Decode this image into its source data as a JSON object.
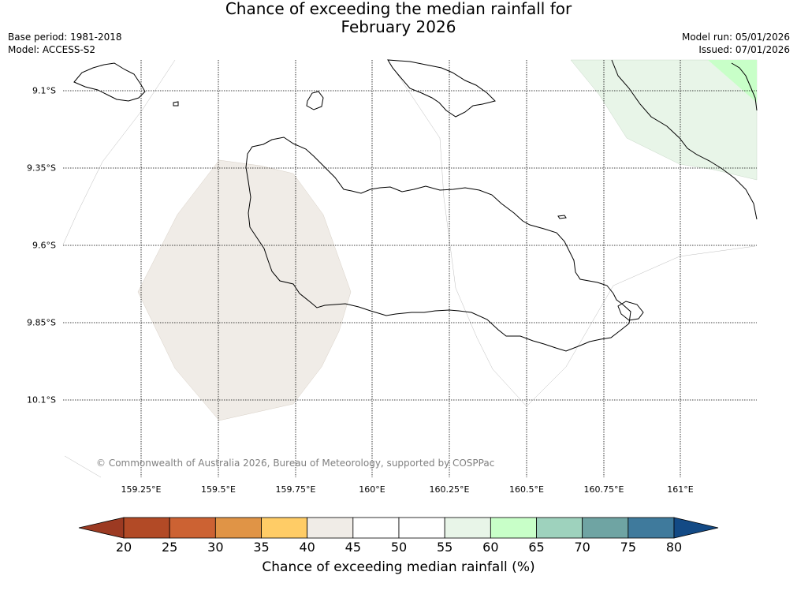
{
  "header": {
    "title_line1": "Chance of exceeding the median rainfall for",
    "title_line2": "February 2026",
    "base_period": "Base period: 1981-2018",
    "model": "Model: ACCESS-S2",
    "model_run": "Model run: 05/01/2026",
    "issued": "Issued: 07/01/2026"
  },
  "map": {
    "lat_labels": [
      "9.1°S",
      "9.35°S",
      "9.6°S",
      "9.85°S",
      "10.1°S"
    ],
    "lon_labels": [
      "159.25°E",
      "159.5°E",
      "159.75°E",
      "160°E",
      "160.25°E",
      "160.5°E",
      "160.75°E",
      "161°E"
    ],
    "copyright": "© Commonwealth of Australia 2026, Bureau of Meteorology, supported by COSPPac",
    "regions": [
      {
        "name": "40-45 region",
        "color": "#f0ece7"
      },
      {
        "name": "55-60 region",
        "color": "#e8f5e8"
      },
      {
        "name": "60-65 region",
        "color": "#c8ffc8"
      }
    ]
  },
  "colorbar": {
    "ticks": [
      "20",
      "25",
      "30",
      "35",
      "40",
      "45",
      "50",
      "55",
      "60",
      "65",
      "70",
      "75",
      "80"
    ],
    "colors": [
      "#b24a26",
      "#cc6233",
      "#e09446",
      "#ffcc66",
      "#f0ece7",
      "#ffffff",
      "#ffffff",
      "#e8f5e8",
      "#c8ffc8",
      "#9ed2bd",
      "#6fa4a3",
      "#3f7a9c"
    ],
    "low_extend_color": "#9c3a22",
    "high_extend_color": "#134a85",
    "label": "Chance of exceeding median rainfall (%)"
  }
}
